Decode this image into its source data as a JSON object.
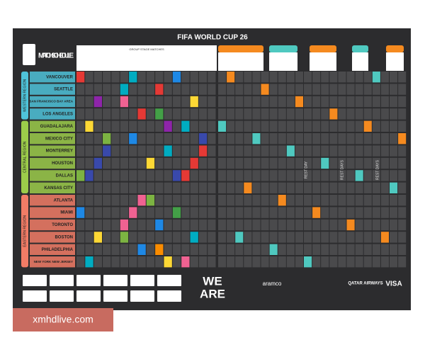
{
  "header": {
    "title": "FIFA WORLD CUP 26",
    "schedule_title": "MATCH SCHEDULE",
    "group_stage_label": "GROUP STAGE MATCHES"
  },
  "regions": [
    {
      "name": "WESTERN REGION",
      "color": "#4fc3d9",
      "cities": [
        "VANCOUVER",
        "SEATTLE",
        "SAN FRANCISCO BAY AREA",
        "LOS ANGELES"
      ]
    },
    {
      "name": "CENTRAL REGION",
      "color": "#9ccc4a",
      "cities": [
        "GUADALAJARA",
        "MEXICO CITY",
        "MONTERREY",
        "HOUSTON",
        "DALLAS",
        "KANSAS CITY"
      ]
    },
    {
      "name": "EASTERN REGION",
      "color": "#f27c66",
      "cities": [
        "ATLANTA",
        "MIAMI",
        "TORONTO",
        "BOSTON",
        "PHILADELPHIA",
        "NEW YORK NEW JERSEY"
      ]
    }
  ],
  "rest_days": [
    "REST DAY",
    "REST DAYS",
    "REST DAYS"
  ],
  "logo": [
    "WE",
    "ARE"
  ],
  "sponsors": [
    "aramco",
    "QATAR AIRWAYS",
    "VISA"
  ],
  "watermark": "xmhdlive.com"
}
